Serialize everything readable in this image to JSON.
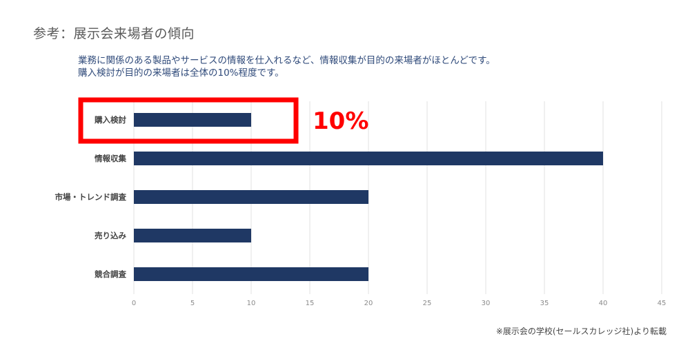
{
  "header": {
    "title": "参考：展示会来場者の傾向",
    "subtitle_lines": [
      "業務に関係のある製品やサービスの情報を仕入れるなど、情報収集が目的の来場者がほとんどです。",
      "購入検討が目的の来場者は全体の10%程度です。"
    ]
  },
  "footer": {
    "source": "※展示会の学校(セールスカレッジ社)より転載"
  },
  "chart_data": {
    "type": "bar",
    "orientation": "horizontal",
    "categories": [
      "購入検討",
      "情報収集",
      "市場・トレンド調査",
      "売り込み",
      "競合調査"
    ],
    "values": [
      10,
      40,
      20,
      10,
      20
    ],
    "xlim": [
      0,
      45
    ],
    "xticks": [
      0,
      5,
      10,
      15,
      20,
      25,
      30,
      35,
      40,
      45
    ],
    "grid": true,
    "legend": "none",
    "bar_color": "#1f3864",
    "annotation": {
      "text": "10%",
      "target_category": "購入検討",
      "color": "#ff0000"
    }
  }
}
